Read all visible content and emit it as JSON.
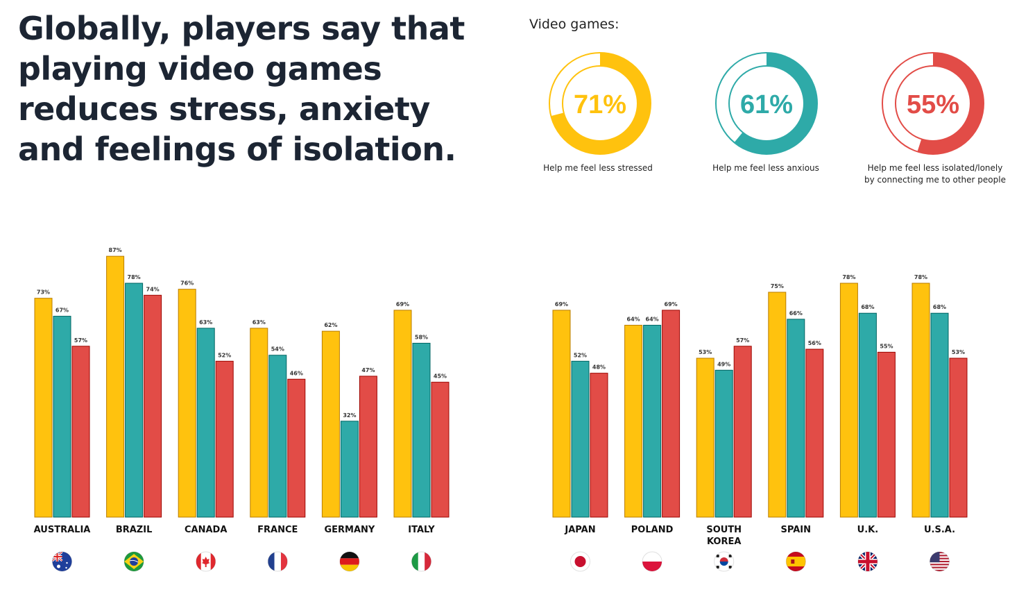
{
  "headline": "Globally, players say that playing video games reduces stress, anxiety and feelings of isolation.",
  "summary": {
    "label": "Video games:",
    "items": [
      {
        "value": 71,
        "display": "71%",
        "caption": [
          "Help me feel less stressed"
        ],
        "color": "#FFC20E"
      },
      {
        "value": 61,
        "display": "61%",
        "caption": [
          "Help me feel less anxious"
        ],
        "color": "#2EAAA8"
      },
      {
        "value": 55,
        "display": "55%",
        "caption": [
          "Help me feel less isolated/lonely",
          "by connecting me to other people"
        ],
        "color": "#E24C47"
      }
    ]
  },
  "chart_data": [
    {
      "type": "bar",
      "title": "",
      "ylim": [
        0,
        100
      ],
      "grid": false,
      "categories": [
        "AUSTRALIA",
        "BRAZIL",
        "CANADA",
        "FRANCE",
        "GERMANY",
        "ITALY"
      ],
      "flags": [
        "australia-flag-icon",
        "brazil-flag-icon",
        "canada-flag-icon",
        "france-flag-icon",
        "germany-flag-icon",
        "italy-flag-icon"
      ],
      "series": [
        {
          "name": "Help me feel less stressed",
          "color": "#FFC20E",
          "values": [
            73,
            87,
            76,
            63,
            62,
            69
          ]
        },
        {
          "name": "Help me feel less anxious",
          "color": "#2EAAA8",
          "values": [
            67,
            78,
            63,
            54,
            32,
            58
          ]
        },
        {
          "name": "Help me feel less isolated/lonely",
          "color": "#E24C47",
          "values": [
            57,
            74,
            52,
            46,
            47,
            45
          ]
        }
      ]
    },
    {
      "type": "bar",
      "title": "",
      "ylim": [
        0,
        100
      ],
      "grid": false,
      "categories": [
        "JAPAN",
        "POLAND",
        "SOUTH KOREA",
        "SPAIN",
        "U.K.",
        "U.S.A."
      ],
      "flags": [
        "japan-flag-icon",
        "poland-flag-icon",
        "south-korea-flag-icon",
        "spain-flag-icon",
        "uk-flag-icon",
        "usa-flag-icon"
      ],
      "series": [
        {
          "name": "Help me feel less stressed",
          "color": "#FFC20E",
          "values": [
            69,
            64,
            53,
            75,
            78,
            78
          ]
        },
        {
          "name": "Help me feel less anxious",
          "color": "#2EAAA8",
          "values": [
            52,
            64,
            49,
            66,
            68,
            68
          ]
        },
        {
          "name": "Help me feel less isolated/lonely",
          "color": "#E24C47",
          "values": [
            48,
            69,
            57,
            56,
            55,
            53
          ]
        }
      ]
    }
  ]
}
